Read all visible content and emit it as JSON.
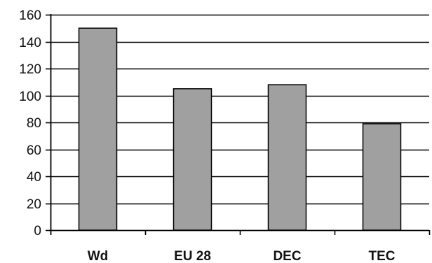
{
  "chart_data": {
    "type": "bar",
    "title": "",
    "xlabel": "",
    "ylabel": "",
    "categories": [
      "Wd",
      "EU 28",
      "DEC",
      "TEC"
    ],
    "values": [
      150,
      105,
      108,
      79
    ],
    "ylim": [
      0,
      160
    ],
    "yticks": [
      "0",
      "20",
      "40",
      "60",
      "80",
      "100",
      "120",
      "140",
      "160"
    ],
    "grid": true,
    "legend": "none",
    "bar_color": "#a0a0a0",
    "bar_edge_color": "#000000"
  }
}
